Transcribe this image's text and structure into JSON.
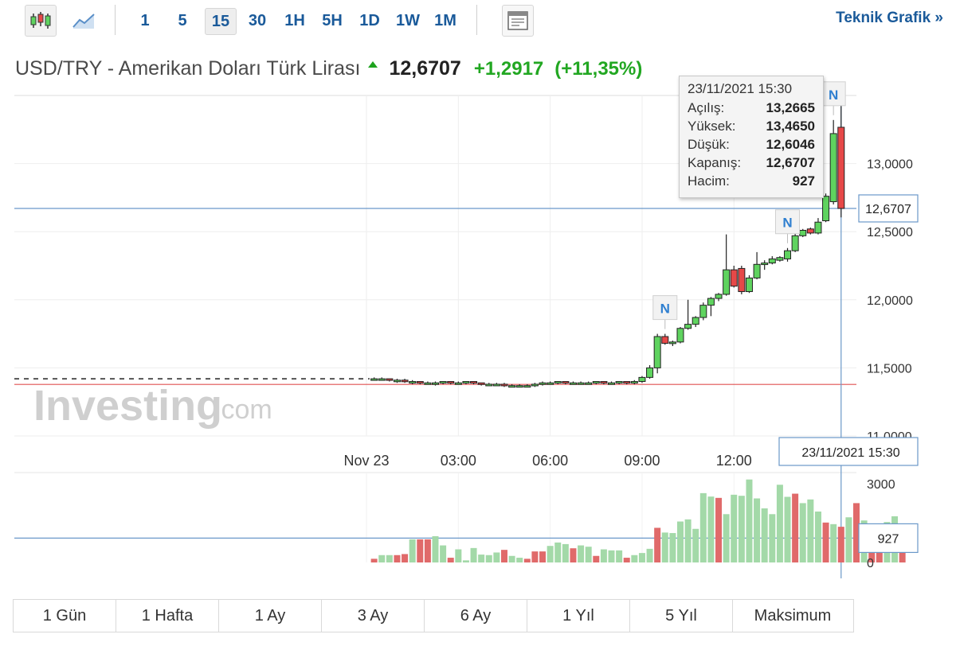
{
  "toolbar": {
    "candlestick_icon": "candlestick-chart-icon",
    "line_icon": "line-chart-icon",
    "intervals": [
      "1",
      "5",
      "15",
      "30",
      "1H",
      "5H",
      "1D",
      "1W",
      "1M"
    ],
    "active_interval": "15",
    "settings_icon": "chart-settings-icon",
    "teknik_label": "Teknik Grafik »"
  },
  "quote": {
    "name": "USD/TRY - Amerikan Doları Türk Lirası",
    "price": "12,6707",
    "change": "+1,2917",
    "change_pct": "(+11,35%)",
    "direction": "up",
    "up_color": "#22a722"
  },
  "tooltip": {
    "date": "23/11/2021 15:30",
    "rows": [
      {
        "label": "Açılış:",
        "value": "13,2665"
      },
      {
        "label": "Yüksek:",
        "value": "13,4650"
      },
      {
        "label": "Düşük:",
        "value": "12,6046"
      },
      {
        "label": "Kapanış:",
        "value": "12,6707"
      },
      {
        "label": "Hacim:",
        "value": "927"
      }
    ]
  },
  "watermark": {
    "brand": "Investing",
    "suffix": ".com"
  },
  "ranges": [
    "1 Gün",
    "1 Hafta",
    "1 Ay",
    "3 Ay",
    "6 Ay",
    "1 Yıl",
    "5 Yıl",
    "Maksimum"
  ],
  "chart_data": {
    "type": "candlestick",
    "price_axis": {
      "ylim": [
        11.0,
        13.5
      ],
      "ticks": [
        "11,0000",
        "11,5000",
        "12,0000",
        "12,5000",
        "13,0000"
      ],
      "tick_values": [
        11.0,
        11.5,
        12.0,
        12.5,
        13.0
      ]
    },
    "time_axis": {
      "xlim": [
        -11.5,
        16.0
      ],
      "ticks": [
        "Nov 23",
        "03:00",
        "06:00",
        "09:00",
        "12:00"
      ],
      "tick_values": [
        0,
        3,
        6,
        9,
        12
      ]
    },
    "current_price_label": "12,6707",
    "current_price": 12.6707,
    "reference_price": 11.3785,
    "crosshair_time_label": "23/11/2021 15:30",
    "crosshair_time": 15.5,
    "news_markers": [
      {
        "t": 9.75,
        "label": "N"
      },
      {
        "t": 13.75,
        "label": "N"
      },
      {
        "t": 15.25,
        "label": "N"
      }
    ],
    "up_color": "#5fd35f",
    "down_color": "#e64848",
    "candles": [
      {
        "t": 0.25,
        "o": 11.42,
        "h": 11.43,
        "l": 11.41,
        "c": 11.42
      },
      {
        "t": 0.5,
        "o": 11.42,
        "h": 11.43,
        "l": 11.41,
        "c": 11.42
      },
      {
        "t": 0.75,
        "o": 11.42,
        "h": 11.42,
        "l": 11.4,
        "c": 11.41
      },
      {
        "t": 1.0,
        "o": 11.41,
        "h": 11.42,
        "l": 11.39,
        "c": 11.41
      },
      {
        "t": 1.25,
        "o": 11.41,
        "h": 11.42,
        "l": 11.39,
        "c": 11.4
      },
      {
        "t": 1.5,
        "o": 11.4,
        "h": 11.41,
        "l": 11.38,
        "c": 11.4
      },
      {
        "t": 1.75,
        "o": 11.4,
        "h": 11.4,
        "l": 11.38,
        "c": 11.39
      },
      {
        "t": 2.0,
        "o": 11.39,
        "h": 11.4,
        "l": 11.38,
        "c": 11.39
      },
      {
        "t": 2.25,
        "o": 11.39,
        "h": 11.4,
        "l": 11.37,
        "c": 11.39
      },
      {
        "t": 2.5,
        "o": 11.39,
        "h": 11.4,
        "l": 11.38,
        "c": 11.4
      },
      {
        "t": 2.75,
        "o": 11.4,
        "h": 11.4,
        "l": 11.38,
        "c": 11.39
      },
      {
        "t": 3.0,
        "o": 11.39,
        "h": 11.4,
        "l": 11.38,
        "c": 11.39
      },
      {
        "t": 3.25,
        "o": 11.39,
        "h": 11.4,
        "l": 11.38,
        "c": 11.4
      },
      {
        "t": 3.5,
        "o": 11.4,
        "h": 11.4,
        "l": 11.38,
        "c": 11.39
      },
      {
        "t": 3.75,
        "o": 11.39,
        "h": 11.39,
        "l": 11.37,
        "c": 11.38
      },
      {
        "t": 4.0,
        "o": 11.38,
        "h": 11.39,
        "l": 11.37,
        "c": 11.38
      },
      {
        "t": 4.25,
        "o": 11.38,
        "h": 11.39,
        "l": 11.37,
        "c": 11.38
      },
      {
        "t": 4.5,
        "o": 11.38,
        "h": 11.39,
        "l": 11.36,
        "c": 11.37
      },
      {
        "t": 4.75,
        "o": 11.37,
        "h": 11.38,
        "l": 11.36,
        "c": 11.37
      },
      {
        "t": 5.0,
        "o": 11.37,
        "h": 11.38,
        "l": 11.36,
        "c": 11.37
      },
      {
        "t": 5.25,
        "o": 11.37,
        "h": 11.38,
        "l": 11.36,
        "c": 11.37
      },
      {
        "t": 5.5,
        "o": 11.37,
        "h": 11.39,
        "l": 11.36,
        "c": 11.38
      },
      {
        "t": 5.75,
        "o": 11.38,
        "h": 11.4,
        "l": 11.37,
        "c": 11.39
      },
      {
        "t": 6.0,
        "o": 11.39,
        "h": 11.4,
        "l": 11.38,
        "c": 11.39
      },
      {
        "t": 6.25,
        "o": 11.39,
        "h": 11.4,
        "l": 11.38,
        "c": 11.4
      },
      {
        "t": 6.5,
        "o": 11.4,
        "h": 11.4,
        "l": 11.38,
        "c": 11.39
      },
      {
        "t": 6.75,
        "o": 11.39,
        "h": 11.4,
        "l": 11.38,
        "c": 11.39
      },
      {
        "t": 7.0,
        "o": 11.39,
        "h": 11.4,
        "l": 11.38,
        "c": 11.39
      },
      {
        "t": 7.25,
        "o": 11.39,
        "h": 11.4,
        "l": 11.38,
        "c": 11.39
      },
      {
        "t": 7.5,
        "o": 11.39,
        "h": 11.4,
        "l": 11.38,
        "c": 11.4
      },
      {
        "t": 7.75,
        "o": 11.4,
        "h": 11.4,
        "l": 11.38,
        "c": 11.39
      },
      {
        "t": 8.0,
        "o": 11.39,
        "h": 11.4,
        "l": 11.38,
        "c": 11.39
      },
      {
        "t": 8.25,
        "o": 11.39,
        "h": 11.4,
        "l": 11.38,
        "c": 11.4
      },
      {
        "t": 8.5,
        "o": 11.4,
        "h": 11.4,
        "l": 11.38,
        "c": 11.39
      },
      {
        "t": 8.75,
        "o": 11.39,
        "h": 11.41,
        "l": 11.38,
        "c": 11.4
      },
      {
        "t": 9.0,
        "o": 11.4,
        "h": 11.44,
        "l": 11.39,
        "c": 11.43
      },
      {
        "t": 9.25,
        "o": 11.43,
        "h": 11.52,
        "l": 11.42,
        "c": 11.5
      },
      {
        "t": 9.5,
        "o": 11.5,
        "h": 11.75,
        "l": 11.46,
        "c": 11.73
      },
      {
        "t": 9.75,
        "o": 11.73,
        "h": 11.75,
        "l": 11.67,
        "c": 11.68
      },
      {
        "t": 10.0,
        "o": 11.68,
        "h": 11.7,
        "l": 11.66,
        "c": 11.69
      },
      {
        "t": 10.25,
        "o": 11.69,
        "h": 11.8,
        "l": 11.68,
        "c": 11.79
      },
      {
        "t": 10.5,
        "o": 11.79,
        "h": 12.0,
        "l": 11.78,
        "c": 11.82
      },
      {
        "t": 10.75,
        "o": 11.82,
        "h": 11.88,
        "l": 11.8,
        "c": 11.87
      },
      {
        "t": 11.0,
        "o": 11.87,
        "h": 11.98,
        "l": 11.85,
        "c": 11.96
      },
      {
        "t": 11.25,
        "o": 11.96,
        "h": 12.02,
        "l": 11.88,
        "c": 12.01
      },
      {
        "t": 11.5,
        "o": 12.01,
        "h": 12.05,
        "l": 11.99,
        "c": 12.04
      },
      {
        "t": 11.75,
        "o": 12.04,
        "h": 12.48,
        "l": 12.03,
        "c": 12.22
      },
      {
        "t": 12.0,
        "o": 12.22,
        "h": 12.25,
        "l": 12.09,
        "c": 12.1
      },
      {
        "t": 12.25,
        "o": 12.23,
        "h": 12.25,
        "l": 12.04,
        "c": 12.06
      },
      {
        "t": 12.5,
        "o": 12.06,
        "h": 12.18,
        "l": 12.05,
        "c": 12.16
      },
      {
        "t": 12.75,
        "o": 12.16,
        "h": 12.35,
        "l": 12.15,
        "c": 12.26
      },
      {
        "t": 13.0,
        "o": 12.26,
        "h": 12.29,
        "l": 12.22,
        "c": 12.27
      },
      {
        "t": 13.25,
        "o": 12.27,
        "h": 12.32,
        "l": 12.26,
        "c": 12.3
      },
      {
        "t": 13.5,
        "o": 12.29,
        "h": 12.32,
        "l": 12.28,
        "c": 12.31
      },
      {
        "t": 13.75,
        "o": 12.3,
        "h": 12.38,
        "l": 12.28,
        "c": 12.36
      },
      {
        "t": 14.0,
        "o": 12.36,
        "h": 12.49,
        "l": 12.35,
        "c": 12.47
      },
      {
        "t": 14.25,
        "o": 12.47,
        "h": 12.52,
        "l": 12.46,
        "c": 12.51
      },
      {
        "t": 14.5,
        "o": 12.52,
        "h": 12.53,
        "l": 12.48,
        "c": 12.49
      },
      {
        "t": 14.75,
        "o": 12.49,
        "h": 12.6,
        "l": 12.48,
        "c": 12.57
      },
      {
        "t": 15.0,
        "o": 12.58,
        "h": 12.78,
        "l": 12.57,
        "c": 12.76
      },
      {
        "t": 15.25,
        "o": 12.72,
        "h": 13.32,
        "l": 12.7,
        "c": 13.22
      },
      {
        "t": 15.5,
        "o": 13.2665,
        "h": 13.465,
        "l": 12.6046,
        "c": 12.6707
      }
    ],
    "volume_axis": {
      "ylim": [
        0,
        3000
      ],
      "ticks": [
        "0",
        "3000"
      ],
      "tick_values": [
        0,
        3000
      ]
    },
    "current_volume_label": "927",
    "current_volume": 927,
    "volumes": [
      {
        "t": -10.75,
        "v": 140,
        "up": false
      },
      {
        "t": -10.5,
        "v": 280,
        "up": true
      },
      {
        "t": -10.25,
        "v": 280,
        "up": true
      },
      {
        "t": -10.0,
        "v": 280,
        "up": false
      },
      {
        "t": -9.75,
        "v": 320,
        "up": false
      },
      {
        "t": -9.5,
        "v": 880,
        "up": true
      },
      {
        "t": -9.25,
        "v": 880,
        "up": false
      },
      {
        "t": -9.0,
        "v": 880,
        "up": false
      },
      {
        "t": -8.75,
        "v": 1000,
        "up": true
      },
      {
        "t": -8.5,
        "v": 650,
        "up": true
      },
      {
        "t": -8.25,
        "v": 180,
        "up": false
      },
      {
        "t": -8.0,
        "v": 500,
        "up": true
      },
      {
        "t": -7.75,
        "v": 80,
        "up": true
      },
      {
        "t": -7.5,
        "v": 550,
        "up": true
      },
      {
        "t": -7.25,
        "v": 300,
        "up": true
      },
      {
        "t": -7.0,
        "v": 280,
        "up": true
      },
      {
        "t": -6.75,
        "v": 380,
        "up": true
      },
      {
        "t": -6.5,
        "v": 480,
        "up": false
      },
      {
        "t": -6.25,
        "v": 250,
        "up": true
      },
      {
        "t": -6.0,
        "v": 180,
        "up": true
      },
      {
        "t": -5.75,
        "v": 140,
        "up": false
      },
      {
        "t": -5.5,
        "v": 420,
        "up": false
      },
      {
        "t": -5.25,
        "v": 420,
        "up": false
      },
      {
        "t": -5.0,
        "v": 630,
        "up": true
      },
      {
        "t": -4.75,
        "v": 760,
        "up": true
      },
      {
        "t": -4.5,
        "v": 700,
        "up": true
      },
      {
        "t": -4.25,
        "v": 540,
        "up": false
      },
      {
        "t": -4.0,
        "v": 650,
        "up": true
      },
      {
        "t": -3.75,
        "v": 600,
        "up": true
      },
      {
        "t": -3.5,
        "v": 250,
        "up": false
      },
      {
        "t": -3.25,
        "v": 500,
        "up": true
      },
      {
        "t": -3.0,
        "v": 460,
        "up": true
      },
      {
        "t": -2.75,
        "v": 460,
        "up": true
      },
      {
        "t": -2.5,
        "v": 180,
        "up": false
      },
      {
        "t": -2.25,
        "v": 280,
        "up": true
      },
      {
        "t": -2.0,
        "v": 360,
        "up": true
      },
      {
        "t": -1.75,
        "v": 520,
        "up": true
      },
      {
        "t": -1.5,
        "v": 1320,
        "up": false
      },
      {
        "t": -1.25,
        "v": 1140,
        "up": true
      },
      {
        "t": -1.0,
        "v": 1120,
        "up": true
      },
      {
        "t": -0.75,
        "v": 1560,
        "up": true
      },
      {
        "t": -0.5,
        "v": 1640,
        "up": true
      },
      {
        "t": -0.25,
        "v": 1280,
        "up": true
      },
      {
        "t": 0.0,
        "v": 2640,
        "up": true
      },
      {
        "t": 0.25,
        "v": 2510,
        "up": true
      },
      {
        "t": 0.5,
        "v": 2460,
        "up": false
      },
      {
        "t": 0.75,
        "v": 1840,
        "up": true
      },
      {
        "t": 1.0,
        "v": 2580,
        "up": true
      },
      {
        "t": 1.25,
        "v": 2540,
        "up": true
      },
      {
        "t": 1.5,
        "v": 3160,
        "up": true
      },
      {
        "t": 1.75,
        "v": 2440,
        "up": true
      },
      {
        "t": 2.0,
        "v": 2060,
        "up": true
      },
      {
        "t": 2.25,
        "v": 1840,
        "up": true
      },
      {
        "t": 2.5,
        "v": 2960,
        "up": true
      },
      {
        "t": 2.75,
        "v": 2500,
        "up": true
      },
      {
        "t": 3.0,
        "v": 2620,
        "up": false
      },
      {
        "t": 3.25,
        "v": 2260,
        "up": true
      },
      {
        "t": 3.5,
        "v": 2400,
        "up": true
      },
      {
        "t": 3.75,
        "v": 1940,
        "up": true
      },
      {
        "t": 4.0,
        "v": 1520,
        "up": false
      },
      {
        "t": 4.25,
        "v": 1460,
        "up": true
      },
      {
        "t": 4.5,
        "v": 1360,
        "up": false
      },
      {
        "t": 4.75,
        "v": 1720,
        "up": true
      },
      {
        "t": 5.0,
        "v": 2260,
        "up": false
      },
      {
        "t": 5.25,
        "v": 1600,
        "up": true
      },
      {
        "t": 5.5,
        "v": 1420,
        "up": false
      },
      {
        "t": 5.75,
        "v": 1420,
        "up": false
      },
      {
        "t": 6.0,
        "v": 1540,
        "up": true
      },
      {
        "t": 6.25,
        "v": 1760,
        "up": true
      },
      {
        "t": 6.5,
        "v": 1250,
        "up": false
      }
    ]
  }
}
